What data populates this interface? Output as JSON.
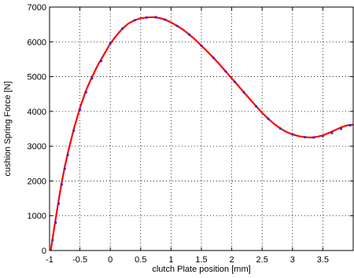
{
  "chart_data": {
    "type": "line",
    "title": "",
    "xlabel": "clutch Plate position [mm]",
    "ylabel": "cushion Spring Force [N]",
    "xlim": [
      -1,
      4
    ],
    "ylim": [
      0,
      7000
    ],
    "xticks": [
      -1,
      -0.5,
      0,
      0.5,
      1,
      1.5,
      2,
      2.5,
      3,
      3.5
    ],
    "xtick_labels": [
      "-1",
      "-0.5",
      "0",
      "0.5",
      "1",
      "1.5",
      "2",
      "2.5",
      "3",
      "3.5"
    ],
    "yticks": [
      0,
      1000,
      2000,
      3000,
      4000,
      5000,
      6000,
      7000
    ],
    "ytick_labels": [
      "0",
      "1000",
      "2000",
      "3000",
      "4000",
      "5000",
      "6000",
      "7000"
    ],
    "grid": true,
    "grid_style": "dotted",
    "series": [
      {
        "style": "line",
        "color": "#ff0000",
        "x": [
          -0.98,
          -0.95,
          -0.9,
          -0.85,
          -0.8,
          -0.75,
          -0.7,
          -0.6,
          -0.5,
          -0.4,
          -0.3,
          -0.2,
          -0.1,
          0,
          0.1,
          0.2,
          0.3,
          0.4,
          0.5,
          0.6,
          0.7,
          0.75,
          0.8,
          0.9,
          1.0,
          1.1,
          1.2,
          1.3,
          1.4,
          1.5,
          1.6,
          1.7,
          1.8,
          1.9,
          2.0,
          2.1,
          2.2,
          2.3,
          2.4,
          2.5,
          2.6,
          2.7,
          2.8,
          2.9,
          3.0,
          3.1,
          3.2,
          3.3,
          3.4,
          3.5,
          3.6,
          3.7,
          3.8,
          3.9,
          4.0
        ],
        "y": [
          0,
          350,
          900,
          1450,
          1950,
          2400,
          2800,
          3500,
          4100,
          4600,
          5000,
          5350,
          5650,
          5950,
          6180,
          6380,
          6530,
          6620,
          6680,
          6700,
          6710,
          6700,
          6690,
          6640,
          6560,
          6460,
          6350,
          6210,
          6060,
          5890,
          5720,
          5540,
          5350,
          5150,
          4950,
          4750,
          4550,
          4350,
          4150,
          3960,
          3790,
          3640,
          3510,
          3410,
          3340,
          3290,
          3260,
          3250,
          3270,
          3310,
          3380,
          3460,
          3540,
          3600,
          3620
        ]
      },
      {
        "style": "markers",
        "color": "#3333cc",
        "x": [
          -0.95,
          -0.9,
          -0.85,
          -0.8,
          -0.75,
          -0.7,
          -0.6,
          -0.5,
          -0.4,
          -0.3,
          -0.15,
          0,
          0.2,
          0.4,
          0.6,
          0.75,
          0.9,
          1.1,
          1.3,
          1.5,
          1.7,
          1.9,
          2.05,
          2.2,
          2.4,
          2.6,
          2.8,
          3.0,
          3.2,
          3.35,
          3.5,
          3.65,
          3.8,
          3.95
        ],
        "y": [
          300,
          800,
          1350,
          1900,
          2350,
          2750,
          3450,
          4050,
          4550,
          4950,
          5450,
          5950,
          6380,
          6620,
          6700,
          6710,
          6640,
          6460,
          6210,
          5890,
          5540,
          5150,
          4850,
          4550,
          4150,
          3790,
          3510,
          3340,
          3260,
          3250,
          3290,
          3380,
          3500,
          3600
        ]
      }
    ]
  }
}
